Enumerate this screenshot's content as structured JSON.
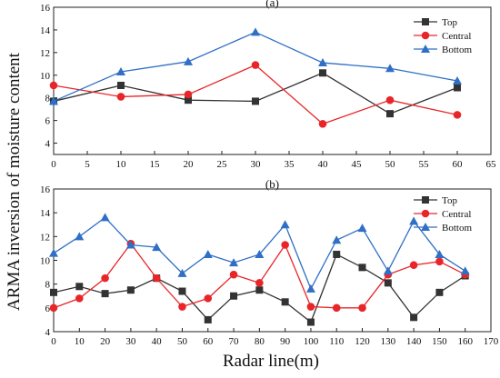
{
  "figure": {
    "ylabel": "ARMA inversion of moisture content",
    "xlabel": "Radar line(m)"
  },
  "chart_data": [
    {
      "panel_label": "(a)",
      "type": "line",
      "xlim": [
        0,
        65
      ],
      "ylim": [
        3,
        16
      ],
      "xticks": [
        0,
        5,
        10,
        15,
        20,
        25,
        30,
        35,
        40,
        45,
        50,
        55,
        60,
        65
      ],
      "yticks": [
        4,
        6,
        8,
        10,
        12,
        14,
        16
      ],
      "legend_position": "top-right",
      "series": [
        {
          "name": "Top",
          "color": "#333333",
          "marker": "square",
          "x": [
            0,
            10,
            20,
            30,
            40,
            50,
            60
          ],
          "y": [
            7.7,
            9.1,
            7.8,
            7.7,
            10.2,
            6.6,
            8.9
          ]
        },
        {
          "name": "Central",
          "color": "#e8262a",
          "marker": "circle",
          "x": [
            0,
            10,
            20,
            30,
            40,
            50,
            60
          ],
          "y": [
            9.1,
            8.1,
            8.3,
            10.9,
            5.7,
            7.8,
            6.5
          ]
        },
        {
          "name": "Bottom",
          "color": "#2f6fc6",
          "marker": "triangle",
          "x": [
            0,
            10,
            20,
            30,
            40,
            50,
            60
          ],
          "y": [
            7.7,
            10.3,
            11.2,
            13.8,
            11.1,
            10.6,
            9.5
          ]
        }
      ]
    },
    {
      "panel_label": "(b)",
      "type": "line",
      "xlim": [
        0,
        170
      ],
      "ylim": [
        4,
        16
      ],
      "xticks": [
        0,
        10,
        20,
        30,
        40,
        50,
        60,
        70,
        80,
        90,
        100,
        110,
        120,
        130,
        140,
        150,
        160,
        170
      ],
      "yticks": [
        4,
        6,
        8,
        10,
        12,
        14,
        16
      ],
      "legend_position": "top-right",
      "series": [
        {
          "name": "Top",
          "color": "#333333",
          "marker": "square",
          "x": [
            0,
            10,
            20,
            30,
            40,
            50,
            60,
            70,
            80,
            90,
            100,
            110,
            120,
            130,
            140,
            150,
            160
          ],
          "y": [
            7.3,
            7.8,
            7.2,
            7.5,
            8.5,
            7.4,
            5.0,
            7.0,
            7.5,
            6.5,
            4.8,
            10.5,
            9.4,
            8.1,
            5.2,
            7.3,
            8.7
          ]
        },
        {
          "name": "Central",
          "color": "#e8262a",
          "marker": "circle",
          "x": [
            0,
            10,
            20,
            30,
            40,
            50,
            60,
            70,
            80,
            90,
            100,
            110,
            120,
            130,
            140,
            150,
            160
          ],
          "y": [
            6.0,
            6.8,
            8.5,
            11.4,
            8.5,
            6.1,
            6.8,
            8.8,
            8.1,
            11.3,
            6.1,
            6.0,
            6.0,
            8.8,
            9.6,
            9.9,
            8.8
          ]
        },
        {
          "name": "Bottom",
          "color": "#2f6fc6",
          "marker": "triangle",
          "x": [
            0,
            10,
            20,
            30,
            40,
            50,
            60,
            70,
            80,
            90,
            100,
            110,
            120,
            130,
            140,
            150,
            160
          ],
          "y": [
            10.6,
            12.0,
            13.6,
            11.3,
            11.1,
            8.9,
            10.5,
            9.8,
            10.5,
            13.0,
            7.6,
            11.7,
            12.7,
            9.1,
            13.3,
            10.5,
            9.1
          ]
        }
      ]
    }
  ]
}
